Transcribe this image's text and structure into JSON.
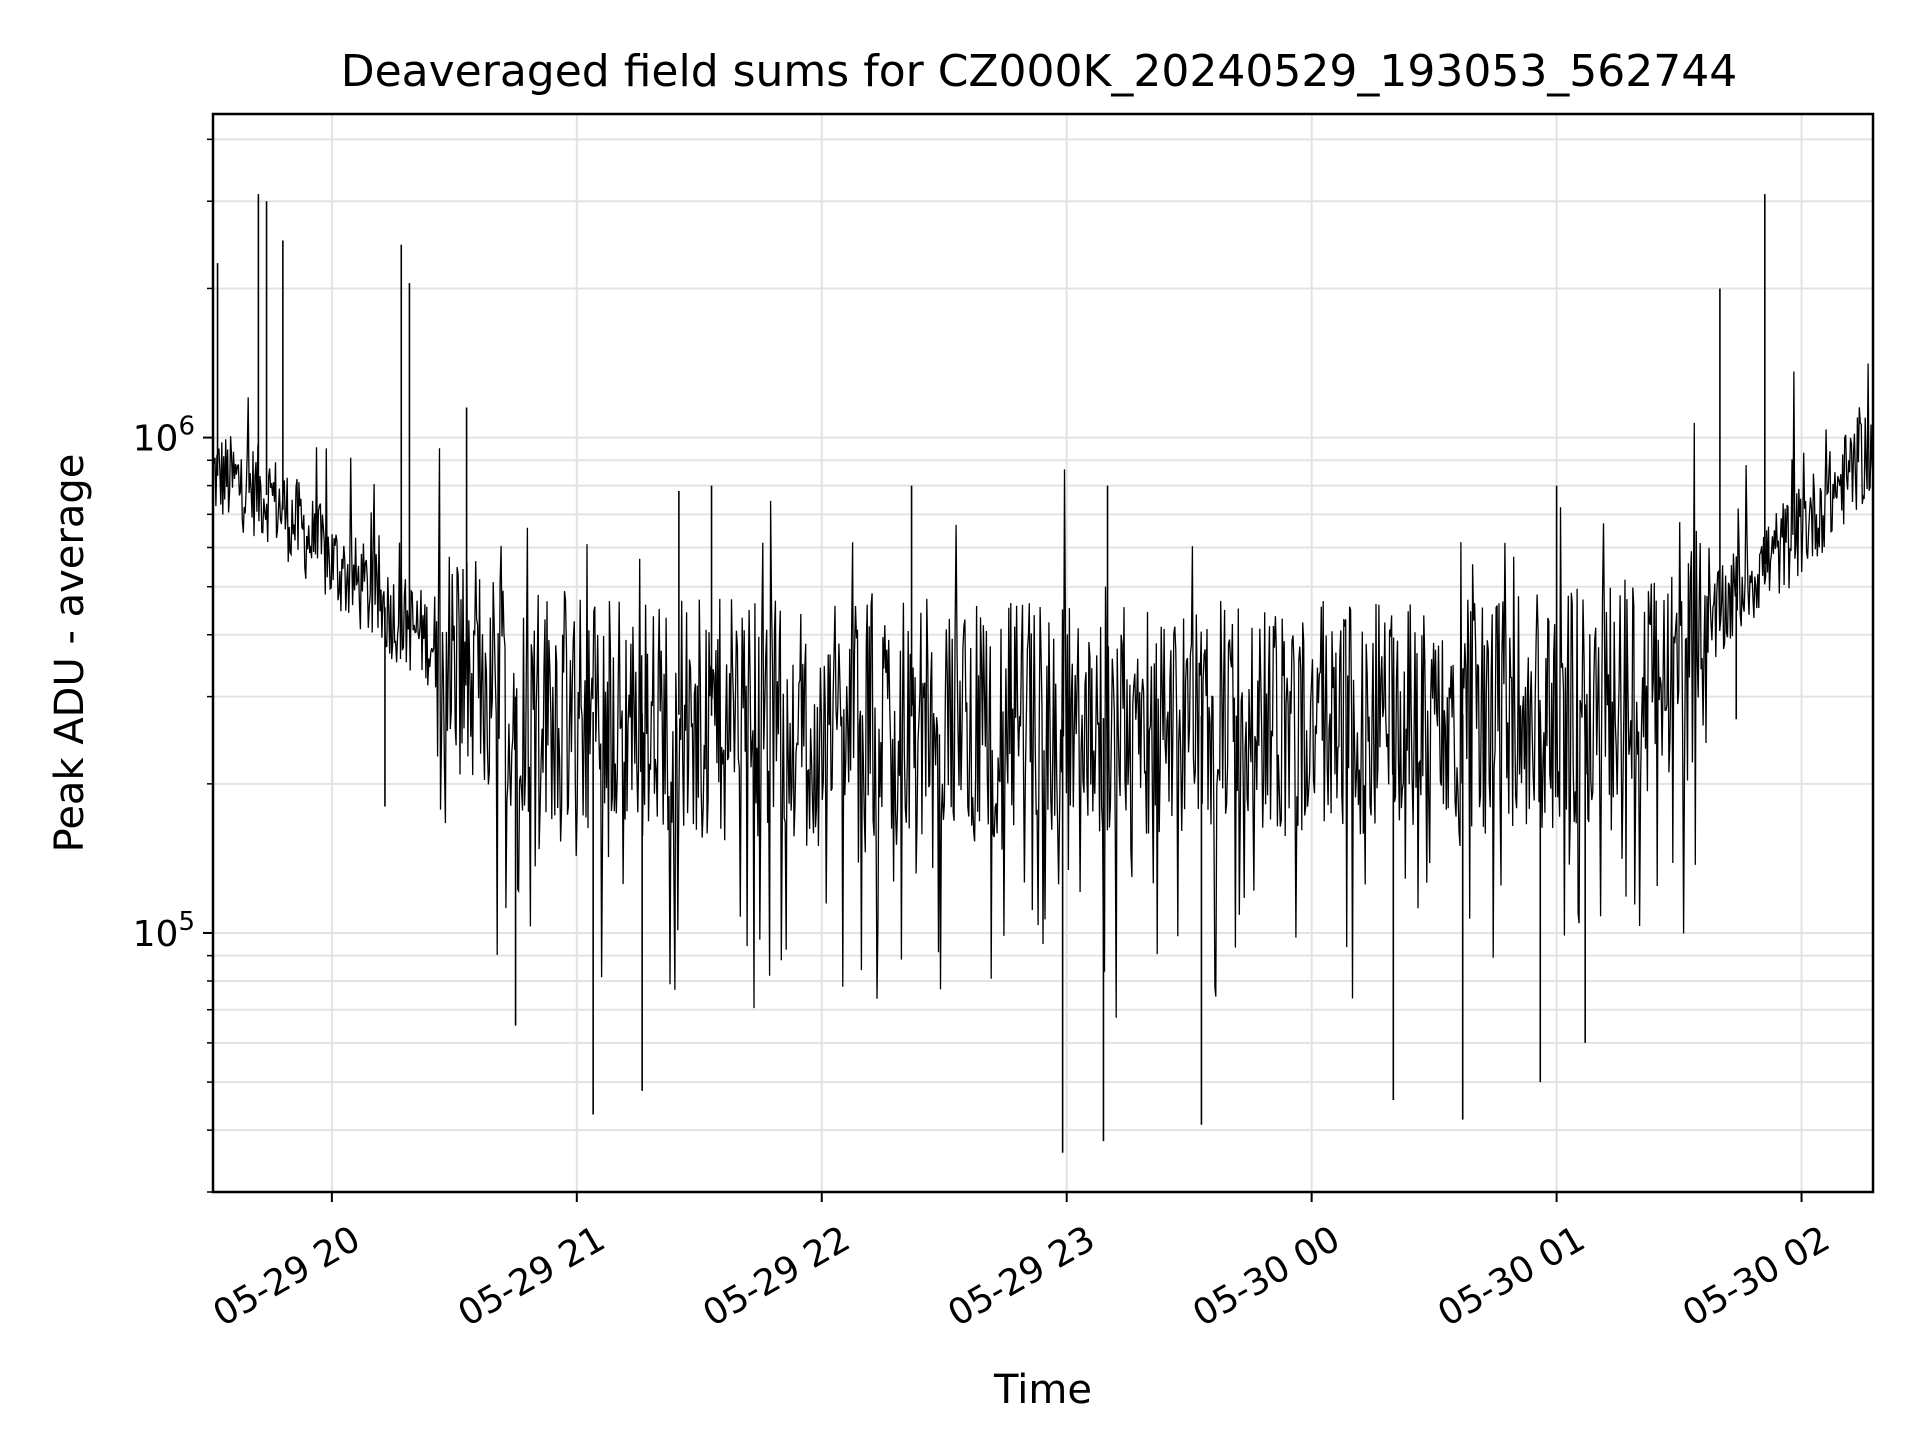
{
  "chart_data": {
    "type": "line",
    "title": "Deaveraged field sums for CZ000K_20240529_193053_562744",
    "xlabel": "Time",
    "ylabel": "Peak ADU - average",
    "yscale": "log",
    "ylim": [
      30000,
      4500000
    ],
    "xlim": [
      "2024-05-29 19:30:53",
      "2024-05-30 02:17:30"
    ],
    "x_ticks": [
      {
        "time": "2024-05-29 20:00",
        "label": "05-29 20"
      },
      {
        "time": "2024-05-29 21:00",
        "label": "05-29 21"
      },
      {
        "time": "2024-05-29 22:00",
        "label": "05-29 22"
      },
      {
        "time": "2024-05-29 23:00",
        "label": "05-29 23"
      },
      {
        "time": "2024-05-30 00:00",
        "label": "05-30 00"
      },
      {
        "time": "2024-05-30 01:00",
        "label": "05-30 01"
      },
      {
        "time": "2024-05-30 02:00",
        "label": "05-30 02"
      }
    ],
    "y_ticks": [
      {
        "value": 100000,
        "base": "10",
        "exp": "5"
      },
      {
        "value": 1000000,
        "base": "10",
        "exp": "6"
      }
    ],
    "grid": true,
    "line_color": "#000000",
    "series": [
      {
        "x": [
          "2024-05-29 19:30",
          "2024-05-29 19:45",
          "2024-05-29 20:00",
          "2024-05-29 20:15",
          "2024-05-29 20:30",
          "2024-05-29 20:45",
          "2024-05-29 21:00",
          "2024-05-29 21:30",
          "2024-05-29 22:00",
          "2024-05-29 22:30",
          "2024-05-29 23:00",
          "2024-05-29 23:30",
          "2024-05-30 00:00",
          "2024-05-30 00:30",
          "2024-05-30 01:00",
          "2024-05-30 01:15",
          "2024-05-30 01:30",
          "2024-05-30 01:45",
          "2024-05-30 02:00",
          "2024-05-30 02:17"
        ],
        "y": [
          850000,
          760000,
          560000,
          440000,
          360000,
          300000,
          280000,
          275000,
          270000,
          275000,
          270000,
          275000,
          270000,
          275000,
          280000,
          300000,
          330000,
          500000,
          650000,
          950000
        ]
      }
    ],
    "spikes_up": [
      {
        "time": "2024-05-29 19:32",
        "value": 2250000
      },
      {
        "time": "2024-05-29 19:42",
        "value": 3100000
      },
      {
        "time": "2024-05-29 19:44",
        "value": 3000000
      },
      {
        "time": "2024-05-29 19:48",
        "value": 2500000
      },
      {
        "time": "2024-05-29 20:17",
        "value": 2450000
      },
      {
        "time": "2024-05-29 20:19",
        "value": 2050000
      },
      {
        "time": "2024-05-29 20:33",
        "value": 1150000
      },
      {
        "time": "2024-05-29 21:25",
        "value": 780000
      },
      {
        "time": "2024-05-29 21:33",
        "value": 800000
      },
      {
        "time": "2024-05-29 22:22",
        "value": 800000
      },
      {
        "time": "2024-05-29 23:10",
        "value": 800000
      },
      {
        "time": "2024-05-30 01:00",
        "value": 800000
      },
      {
        "time": "2024-05-30 01:40",
        "value": 2000000
      },
      {
        "time": "2024-05-30 01:51",
        "value": 3100000
      }
    ],
    "spikes_down": [
      {
        "time": "2024-05-29 20:13",
        "value": 180000
      },
      {
        "time": "2024-05-29 20:45",
        "value": 65000
      },
      {
        "time": "2024-05-29 21:04",
        "value": 43000
      },
      {
        "time": "2024-05-29 21:16",
        "value": 48000
      },
      {
        "time": "2024-05-29 22:59",
        "value": 36000
      },
      {
        "time": "2024-05-29 23:09",
        "value": 38000
      },
      {
        "time": "2024-05-29 23:33",
        "value": 41000
      },
      {
        "time": "2024-05-30 00:20",
        "value": 46000
      },
      {
        "time": "2024-05-30 00:37",
        "value": 42000
      },
      {
        "time": "2024-05-30 00:56",
        "value": 50000
      },
      {
        "time": "2024-05-30 01:07",
        "value": 60000
      },
      {
        "time": "2024-05-30 01:44",
        "value": 270000
      }
    ]
  }
}
